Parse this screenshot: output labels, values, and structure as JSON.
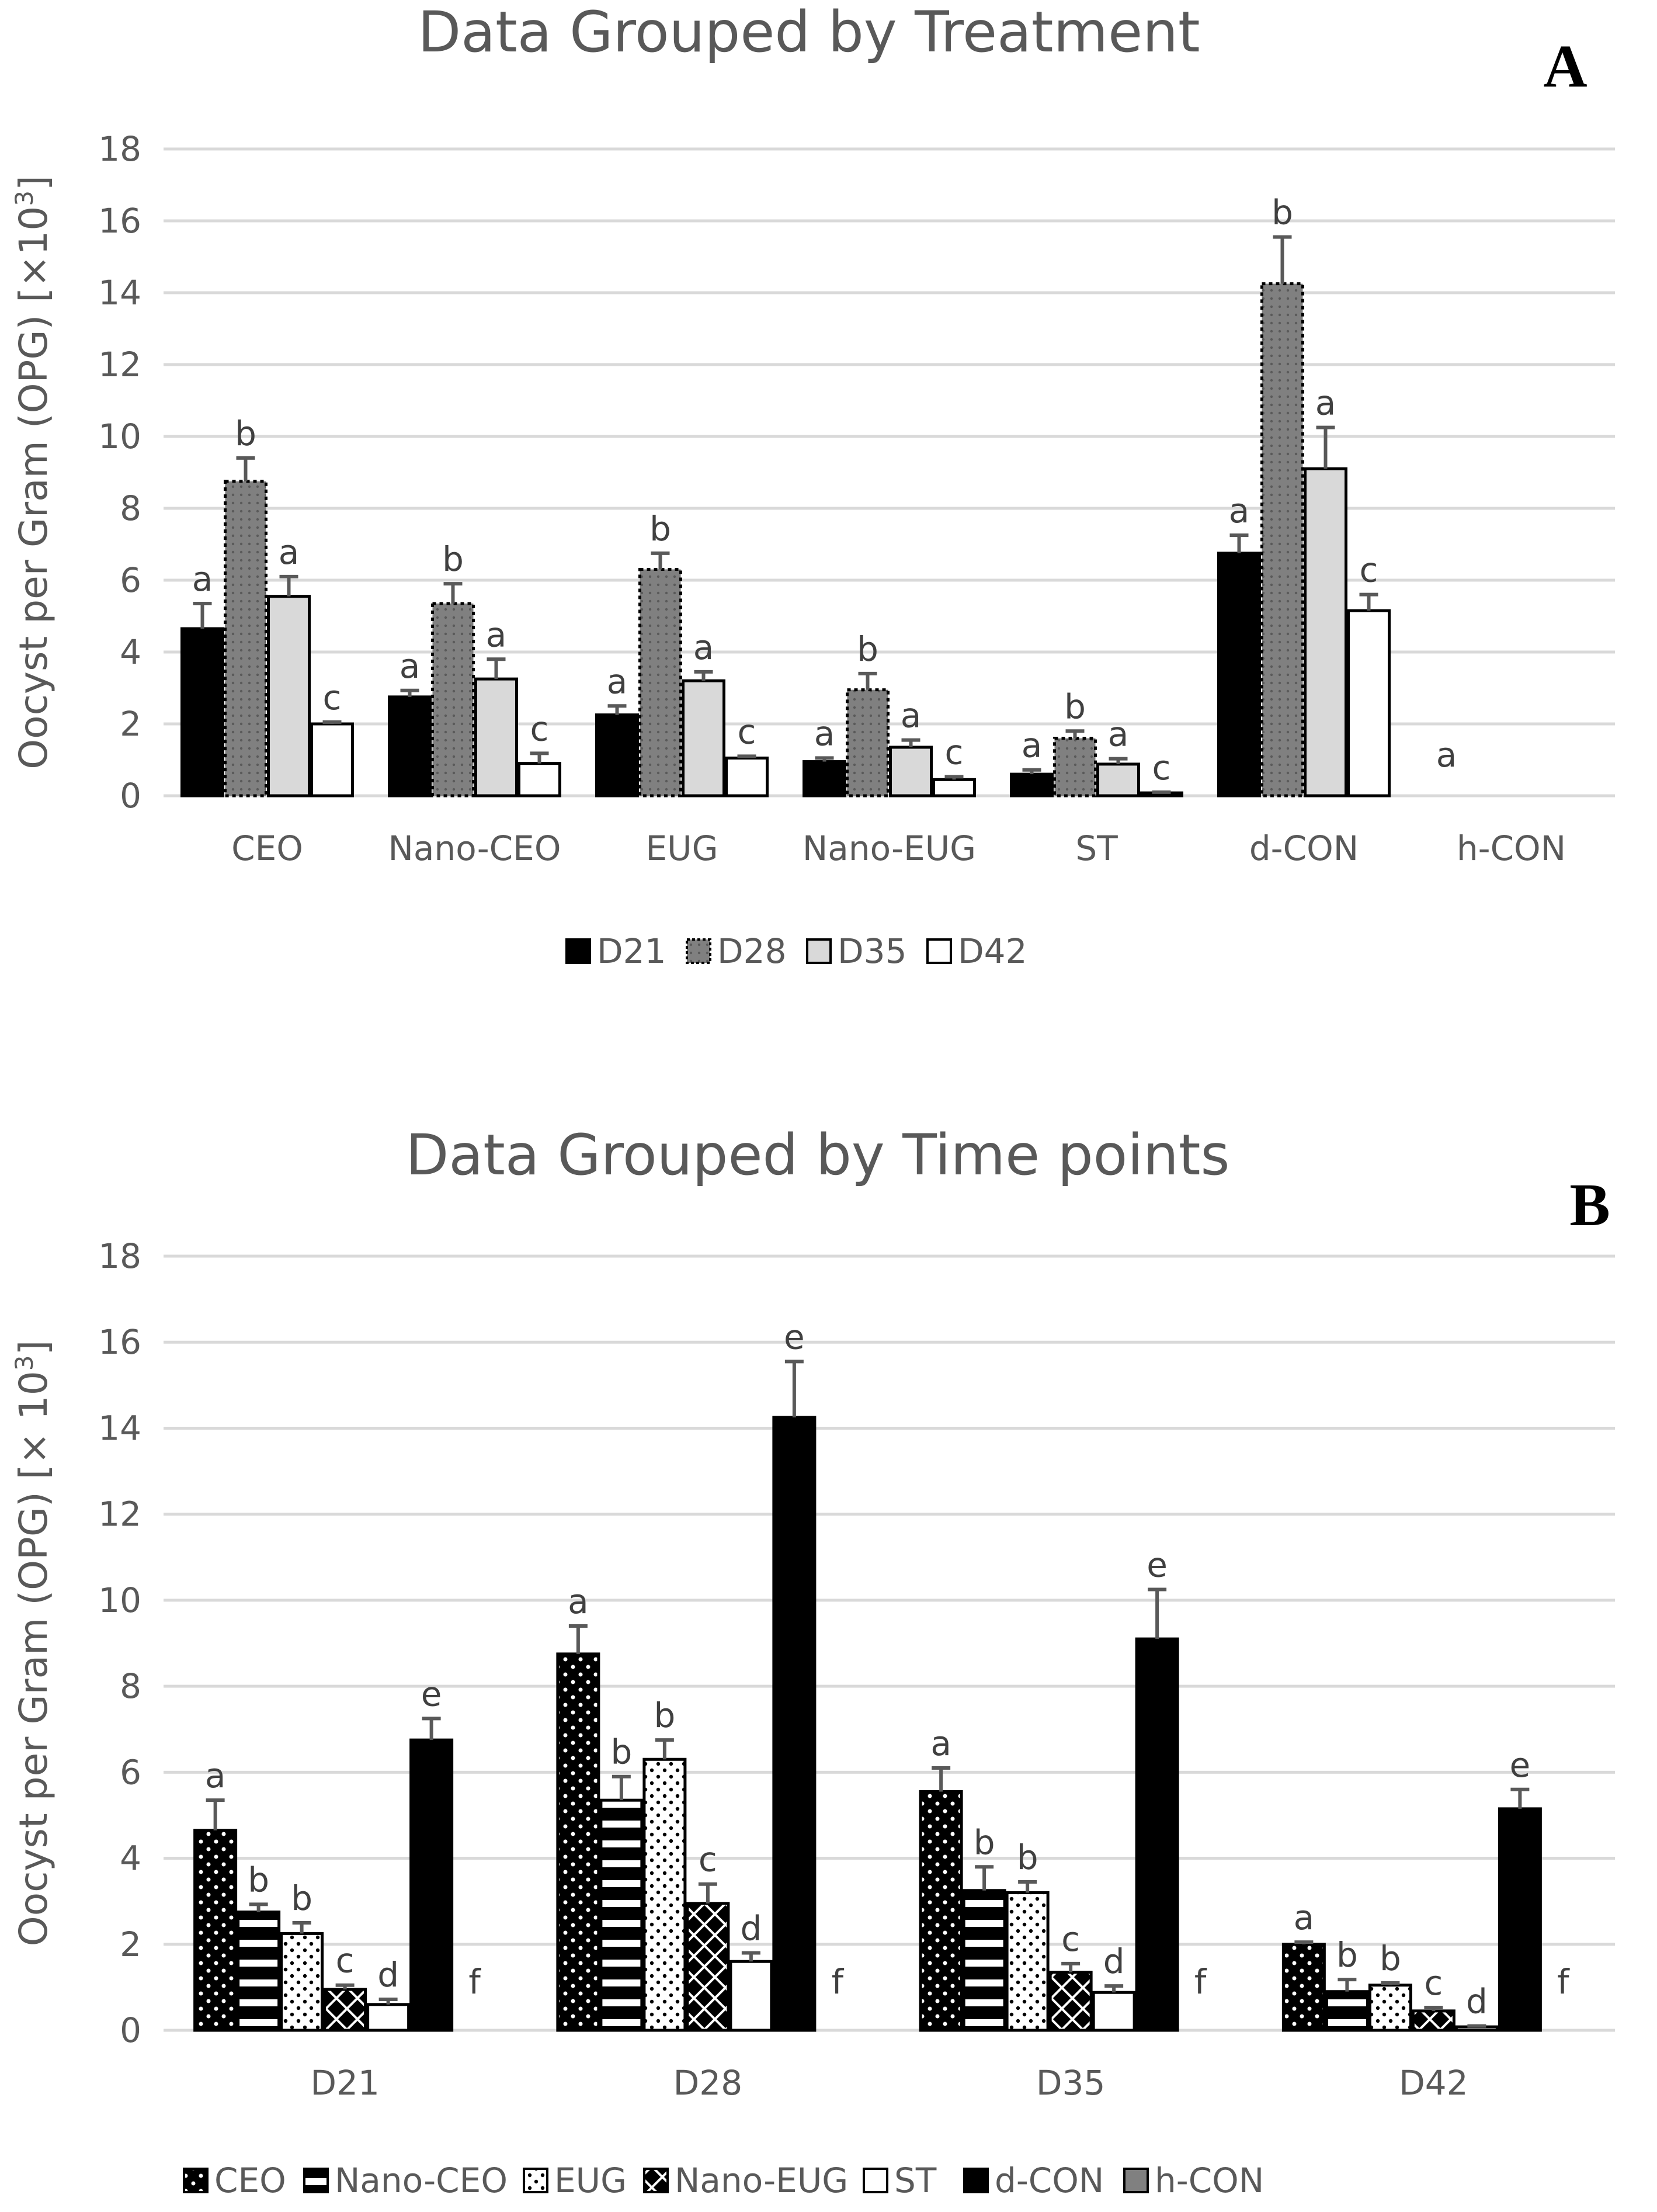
{
  "chart_data": [
    {
      "panel": "A",
      "type": "bar",
      "title": "Data Grouped by Treatment",
      "ylabel": "Oocyst per Gram (OPG) [×10³]",
      "xlabel": "",
      "ylim": [
        0,
        18
      ],
      "yticks": [
        0,
        2,
        4,
        6,
        8,
        10,
        12,
        14,
        16,
        18
      ],
      "grid": true,
      "legend_position": "bottom",
      "categories": [
        "CEO",
        "Nano-CEO",
        "EUG",
        "Nano-EUG",
        "ST",
        "d-CON",
        "h-CON"
      ],
      "series": [
        {
          "name": "D21",
          "style": "black",
          "values": [
            4.65,
            2.75,
            2.25,
            0.95,
            0.6,
            6.75,
            0
          ],
          "errors": [
            0.7,
            0.18,
            0.25,
            0.1,
            0.12,
            0.5,
            0
          ],
          "letters": [
            "a",
            "a",
            "a",
            "a",
            "a",
            "a",
            "a"
          ]
        },
        {
          "name": "D28",
          "style": "darkgray-dotted",
          "values": [
            8.75,
            5.35,
            6.3,
            2.95,
            1.6,
            14.25,
            0
          ],
          "errors": [
            0.65,
            0.55,
            0.45,
            0.45,
            0.2,
            1.3,
            0
          ],
          "letters": [
            "b",
            "b",
            "b",
            "b",
            "b",
            "b",
            ""
          ]
        },
        {
          "name": "D35",
          "style": "lightgray",
          "values": [
            5.55,
            3.25,
            3.2,
            1.35,
            0.88,
            9.1,
            0
          ],
          "errors": [
            0.55,
            0.55,
            0.25,
            0.2,
            0.15,
            1.15,
            0
          ],
          "letters": [
            "a",
            "a",
            "a",
            "a",
            "a",
            "a",
            ""
          ]
        },
        {
          "name": "D42",
          "style": "white",
          "values": [
            2.0,
            0.9,
            1.05,
            0.45,
            0.08,
            5.15,
            0
          ],
          "errors": [
            0.05,
            0.28,
            0.05,
            0.08,
            0.02,
            0.45,
            0
          ],
          "letters": [
            "c",
            "c",
            "c",
            "c",
            "c",
            "c",
            ""
          ]
        }
      ]
    },
    {
      "panel": "B",
      "type": "bar",
      "title": "Data Grouped by Time points",
      "ylabel": "Oocyst per Gram (OPG) [× 10³]",
      "xlabel": "",
      "ylim": [
        0,
        18
      ],
      "yticks": [
        0,
        2,
        4,
        6,
        8,
        10,
        12,
        14,
        16,
        18
      ],
      "grid": true,
      "legend_position": "bottom",
      "categories": [
        "D21",
        "D28",
        "D35",
        "D42"
      ],
      "series": [
        {
          "name": "CEO",
          "style": "black-dots",
          "values": [
            4.65,
            8.75,
            5.55,
            2.0
          ],
          "errors": [
            0.7,
            0.65,
            0.55,
            0.05
          ],
          "letters": [
            "a",
            "a",
            "a",
            "a"
          ]
        },
        {
          "name": "Nano-CEO",
          "style": "black-hstripes",
          "values": [
            2.75,
            5.35,
            3.25,
            0.9
          ],
          "errors": [
            0.18,
            0.55,
            0.55,
            0.28
          ],
          "letters": [
            "b",
            "b",
            "b",
            "b"
          ]
        },
        {
          "name": "EUG",
          "style": "white-dots",
          "values": [
            2.25,
            6.3,
            3.2,
            1.05
          ],
          "errors": [
            0.25,
            0.45,
            0.25,
            0.05
          ],
          "letters": [
            "b",
            "b",
            "b",
            "b"
          ]
        },
        {
          "name": "Nano-EUG",
          "style": "black-cross",
          "values": [
            0.95,
            2.95,
            1.35,
            0.45
          ],
          "errors": [
            0.1,
            0.45,
            0.2,
            0.08
          ],
          "letters": [
            "c",
            "c",
            "c",
            "c"
          ]
        },
        {
          "name": "ST",
          "style": "white",
          "values": [
            0.6,
            1.6,
            0.88,
            0.08
          ],
          "errors": [
            0.12,
            0.2,
            0.15,
            0.02
          ],
          "letters": [
            "d",
            "d",
            "d",
            "d"
          ]
        },
        {
          "name": "d-CON",
          "style": "black",
          "values": [
            6.75,
            14.25,
            9.1,
            5.15
          ],
          "errors": [
            0.5,
            1.3,
            1.15,
            0.45
          ],
          "letters": [
            "e",
            "e",
            "e",
            "e"
          ]
        },
        {
          "name": "h-CON",
          "style": "gray",
          "values": [
            0,
            0,
            0,
            0
          ],
          "errors": [
            0,
            0,
            0,
            0
          ],
          "letters": [
            "f",
            "f",
            "f",
            "f"
          ]
        }
      ]
    }
  ],
  "panel_labels": {
    "a": "A",
    "b": "B"
  },
  "colors": {
    "gridline": "#d9d9d9",
    "text": "#595959",
    "bar_black": "#000000",
    "bar_darkgray": "#808080",
    "bar_lightgray": "#d9d9d9",
    "error_bar": "#595959"
  }
}
